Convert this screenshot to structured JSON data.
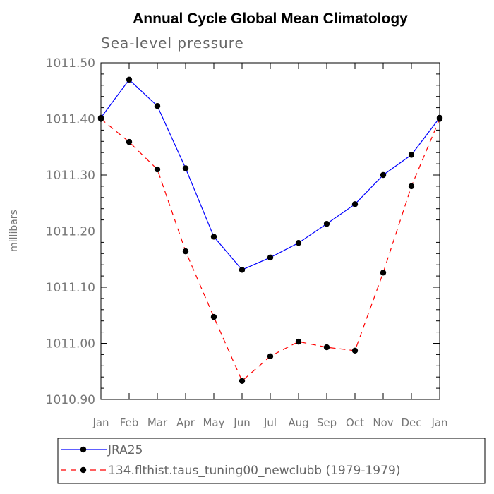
{
  "chart_data": {
    "type": "line",
    "title": "Annual Cycle Global Mean Climatology",
    "subtitle": "Sea-level pressure",
    "xlabel": "",
    "ylabel": "millibars",
    "ylim": [
      1010.9,
      1011.5
    ],
    "yticks": [
      "1010.90",
      "1011.00",
      "1011.10",
      "1011.20",
      "1011.30",
      "1011.40",
      "1011.50"
    ],
    "categories": [
      "Jan",
      "Feb",
      "Mar",
      "Apr",
      "May",
      "Jun",
      "Jul",
      "Aug",
      "Sep",
      "Oct",
      "Nov",
      "Dec",
      "Jan"
    ],
    "series": [
      {
        "name": "JRA25",
        "color": "#0000ff",
        "dash": "solid",
        "values": [
          1011.402,
          1011.47,
          1011.423,
          1011.312,
          1011.19,
          1011.131,
          1011.153,
          1011.179,
          1011.213,
          1011.248,
          1011.3,
          1011.336,
          1011.402
        ]
      },
      {
        "name": "134.flthist.taus_tuning00_newclubb (1979-1979)",
        "color": "#ff0000",
        "dash": "dashed",
        "values": [
          1011.4,
          1011.359,
          1011.31,
          1011.164,
          1011.047,
          1010.933,
          1010.977,
          1011.003,
          1010.993,
          1010.987,
          1011.126,
          1011.28,
          1011.4
        ]
      }
    ],
    "grid": false,
    "legend": "bottom"
  }
}
